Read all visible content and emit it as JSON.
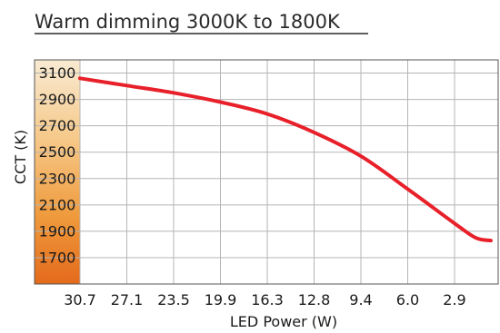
{
  "chart_data": {
    "type": "line",
    "title": "Warm dimming 3000K to 1800K",
    "xlabel": "LED Power (W)",
    "ylabel": "CCT (K)",
    "x_ticks": [
      "30.7",
      "27.1",
      "23.5",
      "19.9",
      "16.3",
      "12.8",
      "9.4",
      "6.0",
      "2.9"
    ],
    "y_ticks": [
      3100,
      2900,
      2700,
      2500,
      2300,
      2100,
      1900,
      1700
    ],
    "ylim": [
      1500,
      3200
    ],
    "grid": true,
    "series": [
      {
        "x": [
          30.7,
          27.1,
          23.5,
          19.9,
          16.3,
          12.8,
          9.4,
          6.0,
          2.9,
          1.5,
          0.5
        ],
        "values": [
          3060,
          3005,
          2950,
          2880,
          2790,
          2650,
          2470,
          2220,
          1960,
          1850,
          1830
        ],
        "color": "#e8202a"
      }
    ],
    "gradient_colors": [
      "#f8ead2",
      "#f6c98a",
      "#ef9a3c",
      "#e46a1c"
    ]
  }
}
